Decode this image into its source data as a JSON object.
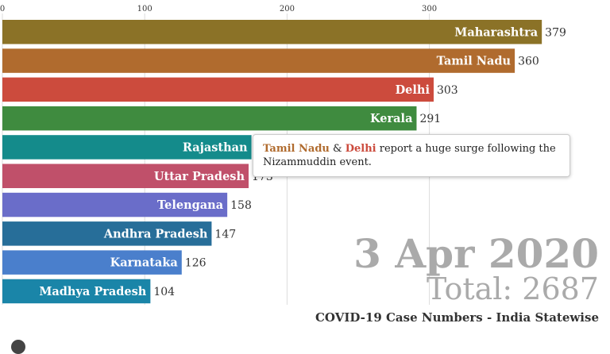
{
  "chart_data": {
    "type": "bar",
    "orientation": "horizontal",
    "title": "COVID-19 Case Numbers - India Statewise",
    "date": "3 Apr 2020",
    "total_label": "Total: 2687",
    "xlim": [
      0,
      380
    ],
    "x_ticks": [
      0,
      100,
      200,
      300
    ],
    "grid": true,
    "categories": [
      "Maharashtra",
      "Tamil Nadu",
      "Delhi",
      "Kerala",
      "Rajasthan",
      "Uttar Pradesh",
      "Telengana",
      "Andhra Pradesh",
      "Karnataka",
      "Madhya Pradesh"
    ],
    "values": [
      379,
      360,
      303,
      291,
      175,
      173,
      158,
      147,
      126,
      104
    ],
    "colors": [
      "#8b7227",
      "#b06b2e",
      "#cc4b3d",
      "#3f8b3f",
      "#148b8b",
      "#c0506a",
      "#6a6dc9",
      "#276e99",
      "#4a7fcc",
      "#1a85a8"
    ],
    "annotation": {
      "state1": "Tamil Nadu",
      "connector": "&",
      "state2": "Delhi",
      "text": "report a huge surge following the Nizammuddin event.",
      "state1_color": "#b06b2e",
      "state2_color": "#cc4b3d"
    }
  }
}
